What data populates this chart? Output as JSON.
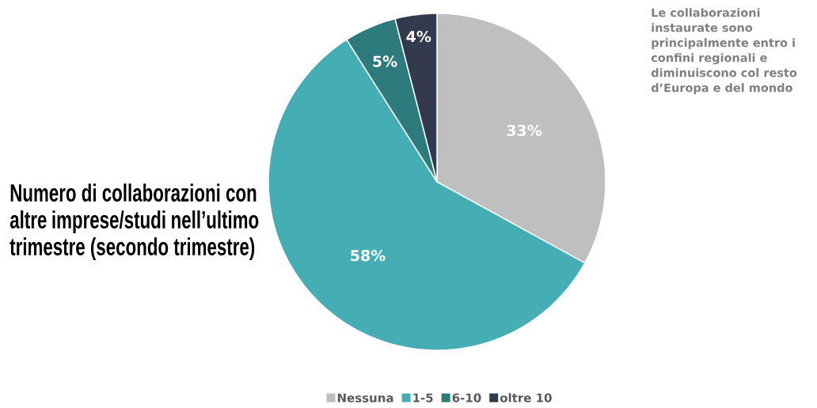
{
  "chart_data": {
    "type": "pie",
    "title": "Numero di collaborazioni con altre imprese/studi nell’ultimo trimestre (secondo trimestre)",
    "annotations": [
      "Le collaborazioni instaurate sono principalmente entro i confini regionali e diminuiscono col resto d’Europa e del mondo"
    ],
    "categories": [
      "Nessuna",
      "1-5",
      "6-10",
      "oltre 10"
    ],
    "values": [
      33,
      58,
      5,
      4
    ],
    "value_labels": [
      "33%",
      "58%",
      "5%",
      "4%"
    ],
    "colors": [
      "#bfbfbf",
      "#45aeb5",
      "#2e7b7e",
      "#333a4d"
    ],
    "legend": "bottom"
  }
}
